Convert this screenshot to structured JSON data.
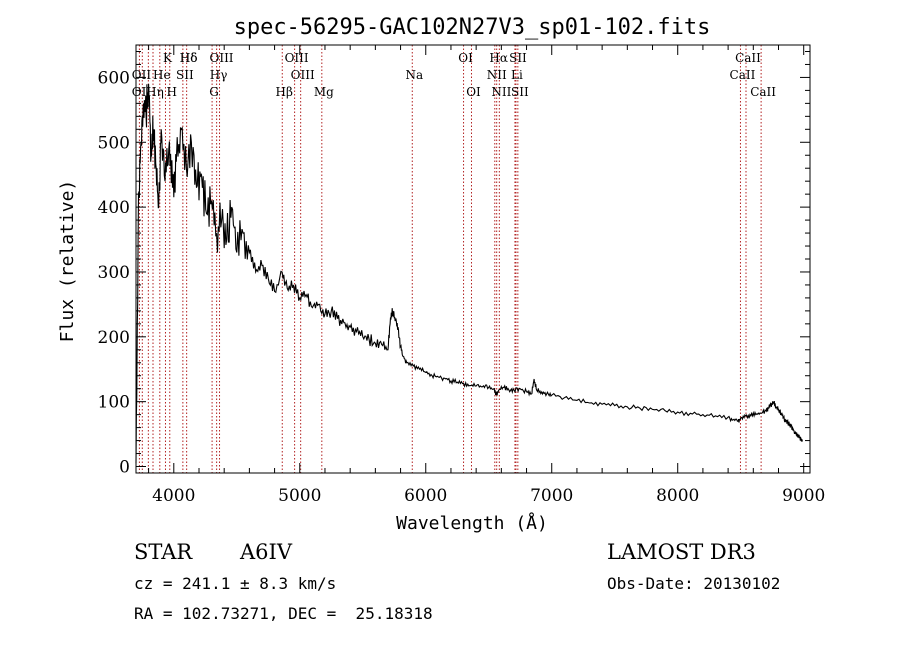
{
  "chart_data": {
    "type": "line",
    "title": "spec-56295-GAC102N27V3_sp01-102.fits",
    "xlabel": "Wavelength (Å)",
    "ylabel": "Flux (relative)",
    "xlim": [
      3700,
      9050
    ],
    "ylim": [
      -10,
      650
    ],
    "x_ticks": [
      4000,
      5000,
      6000,
      7000,
      8000,
      9000
    ],
    "x_tick_labels": [
      "4000",
      "5000",
      "6000",
      "7000",
      "8000",
      "9000"
    ],
    "y_ticks": [
      0,
      100,
      200,
      300,
      400,
      500,
      600
    ],
    "y_tick_labels": [
      "0",
      "100",
      "200",
      "300",
      "400",
      "500",
      "600"
    ],
    "series": [
      {
        "name": "flux",
        "color": "#000000",
        "x": [
          3700,
          3720,
          3740,
          3760,
          3780,
          3800,
          3820,
          3840,
          3860,
          3880,
          3900,
          3930,
          3960,
          3990,
          4020,
          4060,
          4100,
          4140,
          4180,
          4220,
          4260,
          4300,
          4340,
          4380,
          4420,
          4460,
          4500,
          4550,
          4600,
          4650,
          4700,
          4750,
          4800,
          4860,
          4900,
          4950,
          5000,
          5050,
          5100,
          5150,
          5200,
          5250,
          5300,
          5350,
          5400,
          5450,
          5500,
          5550,
          5600,
          5650,
          5700,
          5720,
          5740,
          5760,
          5780,
          5800,
          5820,
          5850,
          5900,
          5950,
          6000,
          6050,
          6100,
          6150,
          6200,
          6250,
          6300,
          6350,
          6400,
          6450,
          6500,
          6540,
          6562,
          6580,
          6620,
          6660,
          6700,
          6750,
          6800,
          6840,
          6860,
          6880,
          6920,
          6960,
          7000,
          7100,
          7200,
          7300,
          7400,
          7500,
          7600,
          7700,
          7800,
          7900,
          8000,
          8100,
          8200,
          8300,
          8400,
          8440,
          8480,
          8500,
          8540,
          8580,
          8620,
          8660,
          8700,
          8720,
          8740,
          8760,
          8780,
          8800,
          8820,
          8840,
          8860,
          8880,
          8900,
          8920,
          8940,
          8960,
          8980,
          8990
        ],
        "y": [
          5,
          420,
          500,
          560,
          540,
          590,
          480,
          520,
          460,
          400,
          520,
          440,
          490,
          430,
          470,
          520,
          460,
          500,
          430,
          450,
          390,
          410,
          360,
          380,
          350,
          400,
          330,
          360,
          330,
          300,
          310,
          290,
          270,
          300,
          275,
          280,
          260,
          265,
          245,
          250,
          235,
          240,
          228,
          222,
          215,
          208,
          200,
          196,
          190,
          188,
          180,
          230,
          240,
          225,
          215,
          185,
          170,
          160,
          155,
          150,
          145,
          140,
          138,
          136,
          132,
          130,
          128,
          125,
          124,
          123,
          122,
          120,
          110,
          118,
          122,
          118,
          118,
          120,
          115,
          112,
          135,
          118,
          115,
          112,
          110,
          106,
          102,
          98,
          96,
          94,
          92,
          90,
          88,
          86,
          84,
          82,
          80,
          78,
          76,
          72,
          70,
          75,
          78,
          78,
          80,
          82,
          86,
          90,
          95,
          100,
          92,
          88,
          82,
          75,
          70,
          66,
          62,
          56,
          50,
          46,
          42,
          40
        ]
      }
    ],
    "lines": [
      {
        "label": "Hδ",
        "wavelength": 4102,
        "row": 1
      },
      {
        "label": "K",
        "wavelength": 3934,
        "row": 1
      },
      {
        "label": "Hδ",
        "wavelength": 4102,
        "row": 1
      },
      {
        "label": "OIII",
        "wavelength": 4363,
        "row": 1
      },
      {
        "label": "OIII",
        "wavelength": 4959,
        "row": 1
      },
      {
        "label": "OI",
        "wavelength": 6300,
        "row": 1
      },
      {
        "label": "Hα",
        "wavelength": 6563,
        "row": 1
      },
      {
        "label": "SII",
        "wavelength": 6716,
        "row": 1
      },
      {
        "label": "CaII",
        "wavelength": 8542,
        "row": 1
      },
      {
        "label": "OII",
        "wavelength": 3727,
        "row": 2
      },
      {
        "label": "He",
        "wavelength": 3889,
        "row": 2
      },
      {
        "label": "SII",
        "wavelength": 4072,
        "row": 2
      },
      {
        "label": "Hγ",
        "wavelength": 4340,
        "row": 2
      },
      {
        "label": "OIII",
        "wavelength": 5007,
        "row": 2
      },
      {
        "label": "Na",
        "wavelength": 5893,
        "row": 2
      },
      {
        "label": "NII",
        "wavelength": 6548,
        "row": 2
      },
      {
        "label": "Li",
        "wavelength": 6708,
        "row": 2
      },
      {
        "label": "CaII",
        "wavelength": 8498,
        "row": 2
      },
      {
        "label": "OII",
        "wavelength": 3727,
        "row": 3
      },
      {
        "label": "Hη",
        "wavelength": 3835,
        "row": 3
      },
      {
        "label": "H",
        "wavelength": 3968,
        "row": 3
      },
      {
        "label": "G",
        "wavelength": 4304,
        "row": 3
      },
      {
        "label": "Hβ",
        "wavelength": 4861,
        "row": 3
      },
      {
        "label": "Mg",
        "wavelength": 5175,
        "row": 3
      },
      {
        "label": "OI",
        "wavelength": 6363,
        "row": 3
      },
      {
        "label": "NII",
        "wavelength": 6584,
        "row": 3
      },
      {
        "label": "SII",
        "wavelength": 6731,
        "row": 3
      },
      {
        "label": "CaII",
        "wavelength": 8662,
        "row": 3
      }
    ],
    "extra_lines": [
      3750,
      3798,
      3889,
      3934,
      3968,
      4102,
      4340,
      4861,
      5007,
      6300,
      6548,
      6563,
      6584,
      6716,
      6731,
      8498,
      8542,
      8662
    ],
    "line_color": "#b22222"
  },
  "info": {
    "object_class": "STAR",
    "subclass": "A6IV",
    "survey": "LAMOST DR3",
    "cz": "cz = 241.1 ± 8.3 km/s",
    "obs_date": "Obs-Date: 20130102",
    "coords": "RA = 102.73271, DEC =  25.18318"
  }
}
